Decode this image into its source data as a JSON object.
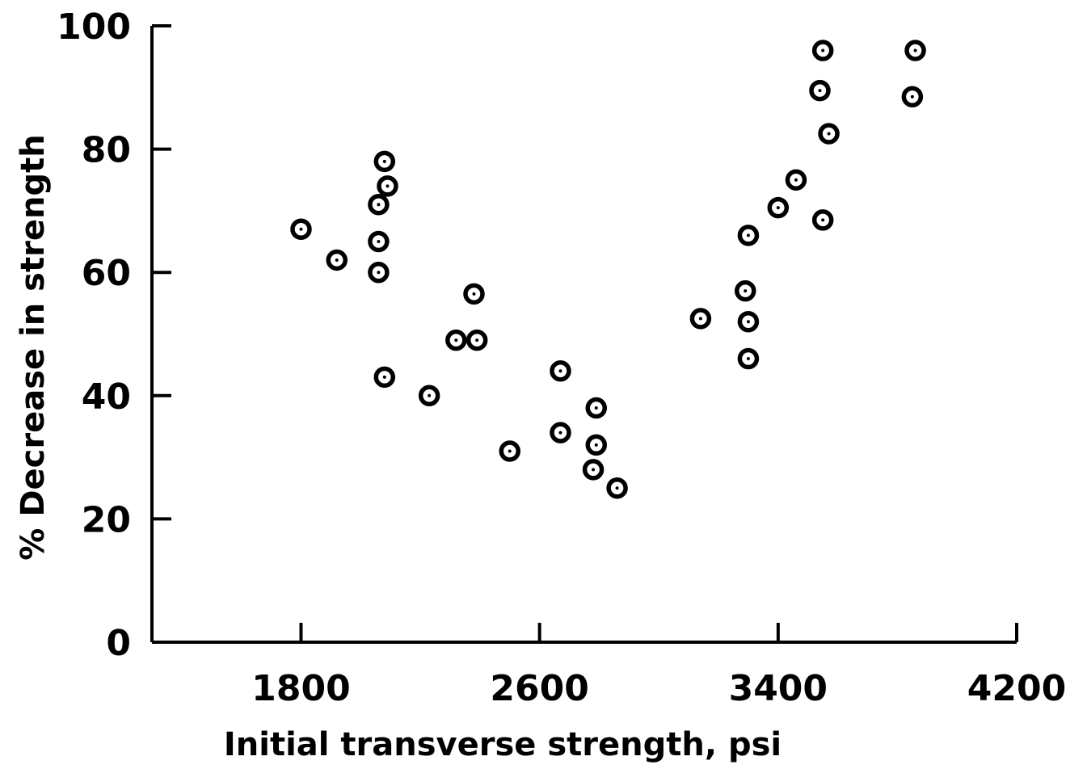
{
  "chart_data": {
    "type": "scatter",
    "xlabel": "Initial transverse strength, psi",
    "ylabel": "% Decrease in strength",
    "xlim": [
      1300,
      4200
    ],
    "ylim": [
      0,
      100
    ],
    "x_ticks": [
      1800,
      2600,
      3400,
      4200
    ],
    "x_tick_labels": [
      "1800",
      "2600",
      "3400",
      "4200"
    ],
    "y_ticks": [
      0,
      20,
      40,
      60,
      80,
      100
    ],
    "y_tick_labels": [
      "0",
      "20",
      "40",
      "60",
      "80",
      "100"
    ],
    "grid": false,
    "colors": {
      "points": "#000000",
      "axes": "#000000",
      "background": "#ffffff"
    },
    "series": [
      {
        "points": [
          [
            1800,
            67
          ],
          [
            1920,
            62
          ],
          [
            2060,
            71
          ],
          [
            2060,
            65
          ],
          [
            2060,
            60
          ],
          [
            2080,
            78
          ],
          [
            2090,
            74
          ],
          [
            2080,
            43
          ],
          [
            2230,
            40
          ],
          [
            2320,
            49
          ],
          [
            2380,
            56.5
          ],
          [
            2390,
            49
          ],
          [
            2500,
            31
          ],
          [
            2670,
            44
          ],
          [
            2670,
            34
          ],
          [
            2790,
            38
          ],
          [
            2790,
            32
          ],
          [
            2780,
            28
          ],
          [
            2860,
            25
          ],
          [
            3140,
            52.5
          ],
          [
            3290,
            57
          ],
          [
            3300,
            52
          ],
          [
            3300,
            46
          ],
          [
            3300,
            66
          ],
          [
            3400,
            70.5
          ],
          [
            3460,
            75
          ],
          [
            3550,
            96
          ],
          [
            3540,
            89.5
          ],
          [
            3570,
            82.5
          ],
          [
            3550,
            68.5
          ],
          [
            3860,
            96
          ],
          [
            3850,
            88.5
          ]
        ]
      }
    ]
  }
}
